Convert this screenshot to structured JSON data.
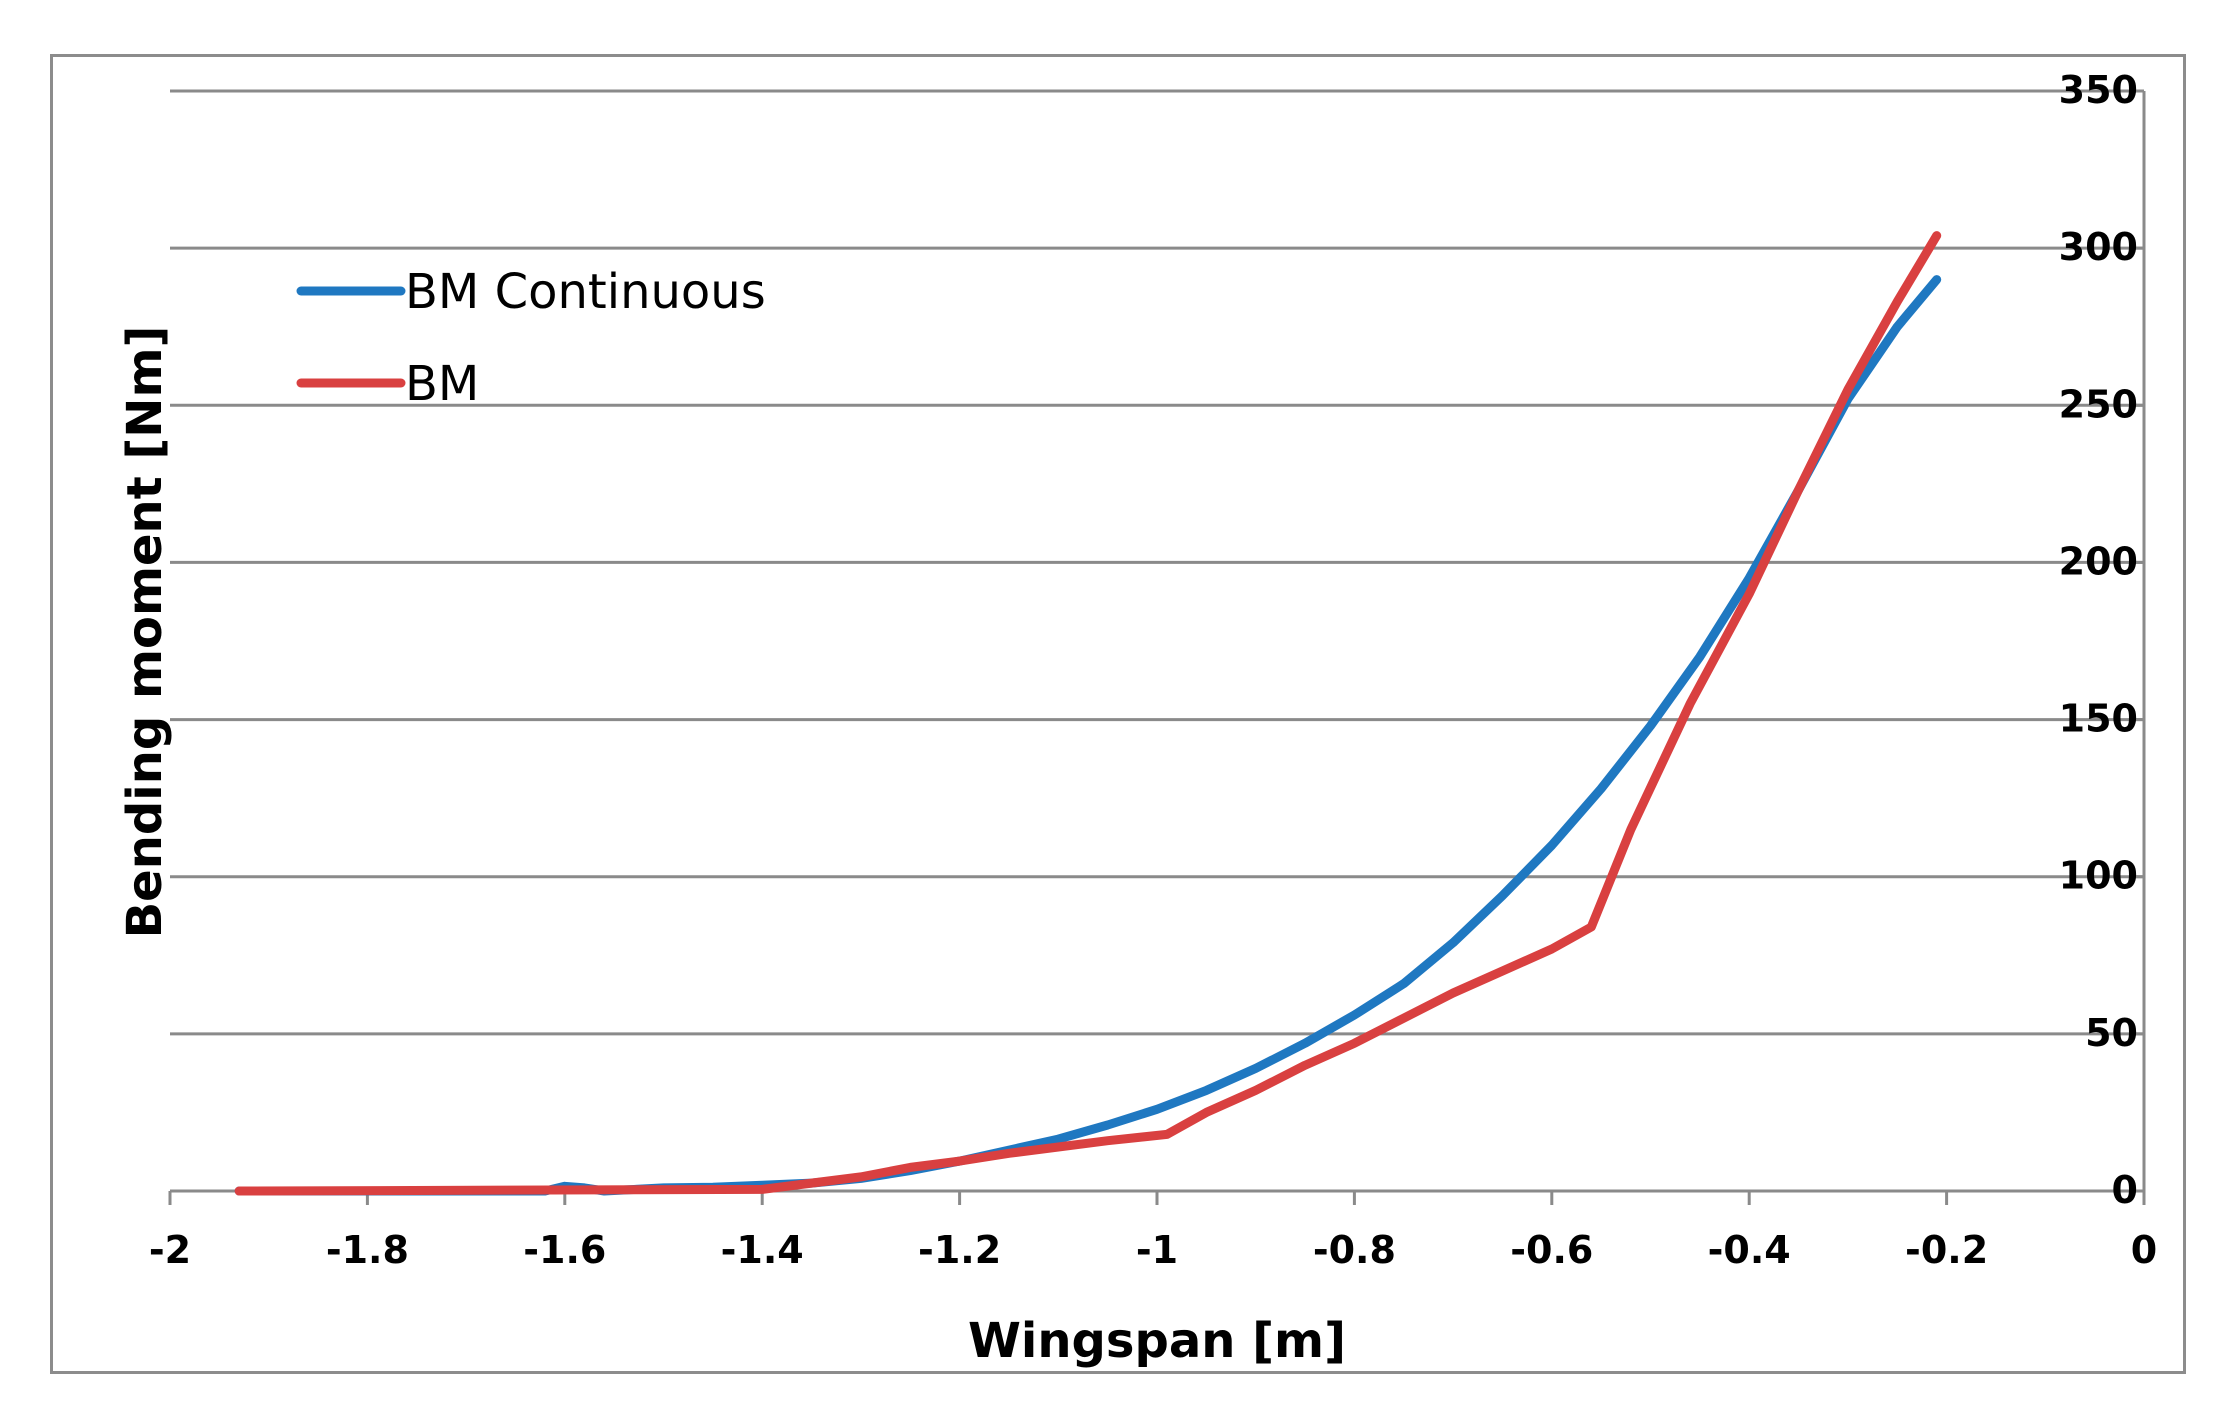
{
  "chart_data": {
    "type": "line",
    "title": "",
    "xlabel": "Wingspan [m]",
    "ylabel": "Bending moment [Nm]",
    "xlim": [
      -2,
      0
    ],
    "ylim": [
      0,
      350
    ],
    "x_ticks": [
      -2,
      -1.8,
      -1.6,
      -1.4,
      -1.2,
      -1,
      -0.8,
      -0.6,
      -0.4,
      -0.2,
      0
    ],
    "x_tick_labels": [
      "-2",
      "-1.8",
      "-1.6",
      "-1.4",
      "-1.2",
      "-1",
      "-0.8",
      "-0.6",
      "-0.4",
      "-0.2",
      "0"
    ],
    "y_ticks": [
      0,
      50,
      100,
      150,
      200,
      250,
      300,
      350
    ],
    "y_tick_labels": [
      "0",
      "50",
      "100",
      "150",
      "200",
      "250",
      "300",
      "350"
    ],
    "y_axis_side": "right",
    "grid": true,
    "legend_position": "top-left",
    "series": [
      {
        "name": "BM Continuous",
        "color": "#1f78c1",
        "points": [
          [
            -1.93,
            0
          ],
          [
            -1.62,
            0
          ],
          [
            -1.6,
            1.5
          ],
          [
            -1.58,
            1.0
          ],
          [
            -1.56,
            0
          ],
          [
            -1.5,
            1.0
          ],
          [
            -1.45,
            1.2
          ],
          [
            -1.4,
            1.8
          ],
          [
            -1.35,
            2.5
          ],
          [
            -1.3,
            4.0
          ],
          [
            -1.25,
            6.5
          ],
          [
            -1.2,
            9.5
          ],
          [
            -1.15,
            13.0
          ],
          [
            -1.1,
            16.5
          ],
          [
            -1.05,
            21.0
          ],
          [
            -1.0,
            26.0
          ],
          [
            -0.95,
            32.0
          ],
          [
            -0.9,
            39.0
          ],
          [
            -0.85,
            47.0
          ],
          [
            -0.8,
            56.0
          ],
          [
            -0.75,
            66.0
          ],
          [
            -0.7,
            79.0
          ],
          [
            -0.65,
            94.0
          ],
          [
            -0.6,
            110.0
          ],
          [
            -0.55,
            128.0
          ],
          [
            -0.5,
            148.0
          ],
          [
            -0.45,
            170.0
          ],
          [
            -0.4,
            195.0
          ],
          [
            -0.35,
            223.0
          ],
          [
            -0.3,
            252.0
          ],
          [
            -0.25,
            275.0
          ],
          [
            -0.21,
            290.0
          ]
        ]
      },
      {
        "name": "BM",
        "color": "#d94040",
        "points": [
          [
            -1.93,
            0
          ],
          [
            -1.4,
            0.5
          ],
          [
            -1.35,
            2.5
          ],
          [
            -1.3,
            4.5
          ],
          [
            -1.25,
            7.5
          ],
          [
            -1.2,
            9.5
          ],
          [
            -1.15,
            12.0
          ],
          [
            -1.1,
            14.0
          ],
          [
            -1.05,
            16.0
          ],
          [
            -0.99,
            18.0
          ],
          [
            -0.95,
            25.0
          ],
          [
            -0.9,
            32.0
          ],
          [
            -0.85,
            40.0
          ],
          [
            -0.8,
            47.0
          ],
          [
            -0.75,
            55.0
          ],
          [
            -0.7,
            63.0
          ],
          [
            -0.65,
            70.0
          ],
          [
            -0.6,
            77.0
          ],
          [
            -0.56,
            84.0
          ],
          [
            -0.52,
            115.0
          ],
          [
            -0.46,
            155.0
          ],
          [
            -0.4,
            190.0
          ],
          [
            -0.35,
            223.0
          ],
          [
            -0.3,
            255.0
          ],
          [
            -0.25,
            283.0
          ],
          [
            -0.21,
            304.0
          ]
        ]
      }
    ]
  }
}
